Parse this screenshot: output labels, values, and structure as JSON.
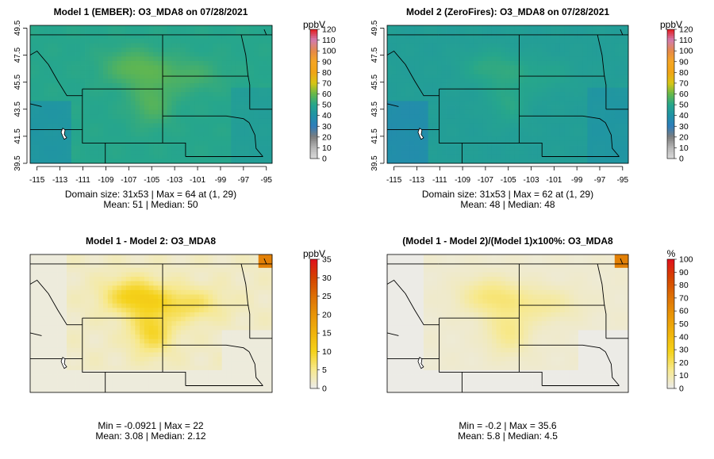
{
  "panels": [
    {
      "id": "m1",
      "title": "Model 1 (EMBER): O3_MDA8 on 07/28/2021",
      "stats": [
        "Domain size: 31x53 | Max = 64 at (1, 29)",
        "Mean: 51 |  Median: 50"
      ],
      "unit": "ppbV",
      "palette": "ozone",
      "colorbar_ticks": [
        0,
        10,
        20,
        30,
        40,
        50,
        60,
        70,
        80,
        90,
        100,
        110,
        120
      ],
      "colorbar_range": [
        0,
        120
      ],
      "base": 50,
      "hot_amp": 12,
      "show_axes": true
    },
    {
      "id": "m2",
      "title": "Model 2 (ZeroFires): O3_MDA8 on 07/28/2021",
      "stats": [
        "Domain size: 31x53 | Max = 62 at (1, 29)",
        "Mean: 48 |  Median: 48"
      ],
      "unit": "ppbV",
      "palette": "ozone",
      "colorbar_ticks": [
        0,
        10,
        20,
        30,
        40,
        50,
        60,
        70,
        80,
        90,
        100,
        110,
        120
      ],
      "colorbar_range": [
        0,
        120
      ],
      "base": 46,
      "hot_amp": 8,
      "show_axes": true
    },
    {
      "id": "d1",
      "title": "Model 1 - Model 2: O3_MDA8",
      "stats": [
        "Min = -0.0921 | Max = 22",
        "Mean: 3.08 |  Median: 2.12"
      ],
      "unit": "ppbV",
      "palette": "diff",
      "colorbar_ticks": [
        0,
        5,
        10,
        15,
        20,
        25,
        30,
        35
      ],
      "colorbar_range": [
        0,
        35
      ],
      "base": 2,
      "hot_amp": 12,
      "show_axes": false
    },
    {
      "id": "d2",
      "title": "(Model 1 - Model 2)/(Model 1)x100%: O3_MDA8",
      "stats": [
        "Min = -0.2 | Max = 35.6",
        "Mean: 5.8 |  Median: 4.5"
      ],
      "unit": "%",
      "palette": "diff",
      "colorbar_ticks": [
        0,
        10,
        20,
        30,
        40,
        50,
        60,
        70,
        80,
        90,
        100
      ],
      "colorbar_range": [
        0,
        100
      ],
      "base": 4,
      "hot_amp": 18,
      "show_axes": false
    }
  ],
  "x_ticks": [
    -115,
    -113,
    -111,
    -109,
    -107,
    -105,
    -103,
    -101,
    -99,
    -97,
    -95
  ],
  "y_ticks": [
    39.5,
    41.5,
    43.5,
    45.5,
    47.5,
    49.5
  ],
  "colors": {
    "ozone": [
      "#d9d9d9",
      "#b6b6b6",
      "#7d7d7d",
      "#2f7dbb",
      "#1f92a6",
      "#26a68c",
      "#66b84a",
      "#d8c515",
      "#f0a416",
      "#f5a623",
      "#e5894a",
      "#d27cb0",
      "#e41a1c"
    ],
    "diff": [
      "#ebebeb",
      "#f7e98e",
      "#f5d21a",
      "#f0b30c",
      "#e89407",
      "#dd6f05",
      "#d44300",
      "#e0101d"
    ]
  }
}
